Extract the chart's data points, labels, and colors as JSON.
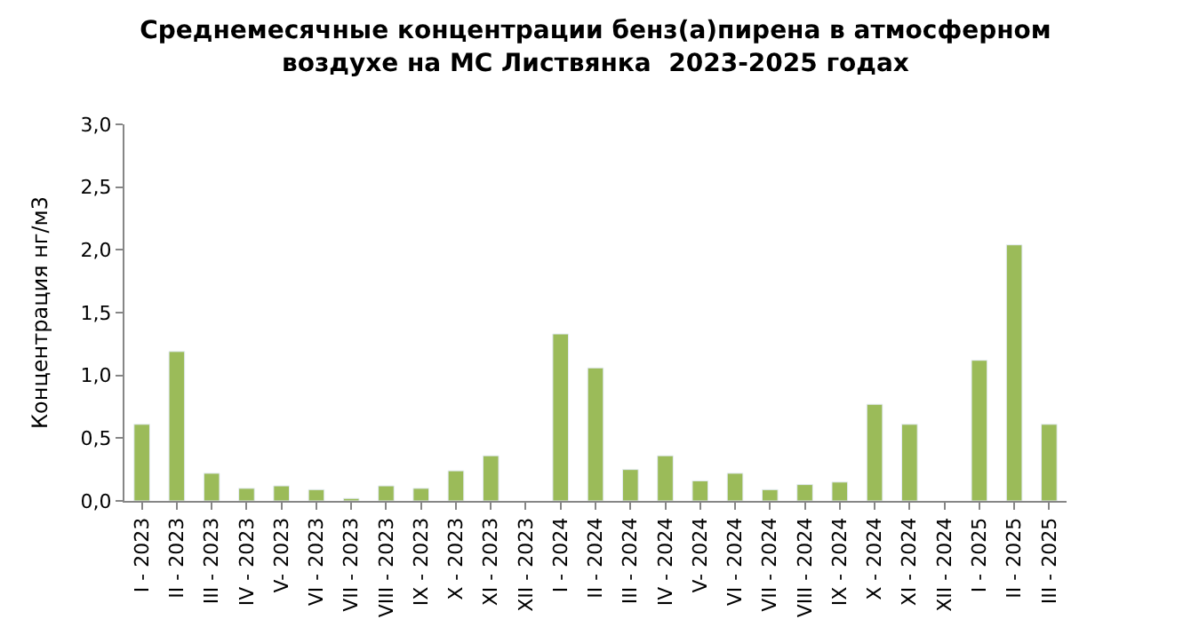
{
  "chart_data": {
    "type": "bar",
    "title": "Среднемесячные концентрации бенз(а)пирена в атмосферном\nвоздухе на МС Листвянка  2023-2025 годах",
    "ylabel": "Концентрация нг/м3",
    "categories": [
      "I - 2023",
      "II - 2023",
      "III - 2023",
      "IV - 2023",
      "V- 2023",
      "VI - 2023",
      "VII - 2023",
      "VIII - 2023",
      "IX - 2023",
      "X - 2023",
      "XI - 2023",
      "XII - 2023",
      "I - 2024",
      "II - 2024",
      "III - 2024",
      "IV - 2024",
      "V- 2024",
      "VI - 2024",
      "VII - 2024",
      "VIII - 2024",
      "IX - 2024",
      "X - 2024",
      "XI - 2024",
      "XII - 2024",
      "I - 2025",
      "II - 2025",
      "III - 2025"
    ],
    "values": [
      0.61,
      1.19,
      0.22,
      0.1,
      0.12,
      0.09,
      0.02,
      0.12,
      0.1,
      0.24,
      0.36,
      null,
      1.33,
      1.06,
      0.25,
      0.36,
      0.16,
      0.22,
      0.09,
      0.13,
      0.15,
      0.77,
      0.61,
      null,
      1.12,
      2.04,
      0.61
    ],
    "color": "#9bbb59",
    "ylim": [
      0,
      3
    ],
    "yticks": [
      {
        "value": 0,
        "label": "0,0"
      },
      {
        "value": 0.5,
        "label": "0,5"
      },
      {
        "value": 1,
        "label": "1,0"
      },
      {
        "value": 1.5,
        "label": "1,5"
      },
      {
        "value": 2,
        "label": "2,0"
      },
      {
        "value": 2.5,
        "label": "2,5"
      },
      {
        "value": 3,
        "label": "3,0"
      }
    ],
    "legend": false
  }
}
